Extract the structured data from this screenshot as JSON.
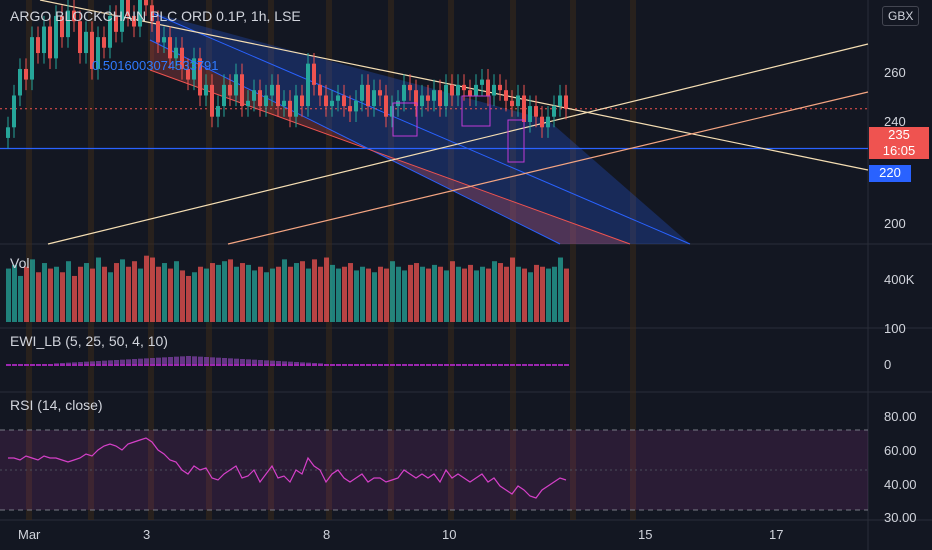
{
  "header": {
    "title": "ARGO BLOCKCHAIN PLC ORD 0.1P, 1h, LSE",
    "fib_label": "0.5016003074533791",
    "currency": "GBX"
  },
  "price_axis": {
    "ticks": [
      "260",
      "240",
      "200"
    ],
    "current_price": "235",
    "countdown": "16:05",
    "level_tag": "220"
  },
  "panes": {
    "volume": {
      "label": "Vol",
      "ticks": [
        "400K",
        "100"
      ]
    },
    "ewi": {
      "label": "EWI_LB (5, 25, 50, 4, 10)",
      "ticks": [
        "0"
      ]
    },
    "rsi": {
      "label": "RSI (14, close)",
      "ticks": [
        "80.00",
        "60.00",
        "40.00",
        "30.00"
      ]
    }
  },
  "time_axis": {
    "ticks": [
      "Mar",
      "3",
      "8",
      "10",
      "15",
      "17"
    ]
  },
  "colors": {
    "bg": "#131722",
    "up": "#26a69a",
    "down": "#ef5350",
    "blue": "#2962ff",
    "rsi": "#d540c8"
  },
  "chart_data": {
    "type": "candlestick",
    "title": "ARGO BLOCKCHAIN PLC ORD 0.1P, 1h, LSE",
    "ylim": [
      184,
      276
    ],
    "close": [
      228,
      240,
      250,
      246,
      262,
      256,
      266,
      254,
      270,
      262,
      272,
      268,
      256,
      264,
      250,
      262,
      258,
      270,
      264,
      278,
      270,
      266,
      280,
      274,
      268,
      260,
      262,
      254,
      258,
      250,
      246,
      254,
      240,
      244,
      232,
      236,
      244,
      240,
      248,
      236,
      238,
      242,
      236,
      240,
      244,
      236,
      238,
      232,
      240,
      236,
      252,
      244,
      240,
      236,
      238,
      240,
      236,
      234,
      238,
      244,
      236,
      242,
      240,
      232,
      236,
      238,
      244,
      242,
      236,
      240,
      238,
      242,
      236,
      244,
      240,
      244,
      242,
      240,
      244,
      246,
      240,
      244,
      242,
      238,
      236,
      240,
      230,
      236,
      232,
      228,
      232,
      236,
      240,
      235
    ],
    "volume": [
      290,
      310,
      250,
      300,
      340,
      270,
      320,
      290,
      300,
      270,
      330,
      250,
      300,
      320,
      290,
      350,
      300,
      270,
      320,
      340,
      300,
      330,
      290,
      360,
      350,
      300,
      320,
      290,
      330,
      280,
      250,
      270,
      300,
      290,
      320,
      310,
      330,
      340,
      300,
      320,
      310,
      280,
      300,
      270,
      290,
      300,
      340,
      300,
      320,
      330,
      290,
      340,
      300,
      350,
      310,
      290,
      300,
      320,
      280,
      300,
      290,
      270,
      300,
      290,
      330,
      300,
      280,
      310,
      320,
      300,
      290,
      310,
      300,
      280,
      330,
      300,
      290,
      310,
      280,
      300,
      290,
      330,
      320,
      300,
      350,
      300,
      290,
      270,
      310,
      300,
      290,
      300,
      350,
      290
    ],
    "rsi": [
      56,
      56,
      55,
      57,
      56,
      55,
      57,
      56,
      56,
      55,
      54,
      55,
      56,
      58,
      57,
      60,
      62,
      63,
      62,
      60,
      63,
      64,
      65,
      66,
      64,
      60,
      58,
      55,
      54,
      50,
      48,
      52,
      50,
      51,
      46,
      45,
      48,
      50,
      52,
      46,
      47,
      50,
      44,
      48,
      52,
      46,
      47,
      44,
      50,
      48,
      56,
      52,
      50,
      44,
      48,
      50,
      46,
      44,
      46,
      48,
      44,
      46,
      46,
      44,
      45,
      46,
      50,
      48,
      46,
      48,
      46,
      48,
      44,
      50,
      46,
      48,
      46,
      44,
      46,
      48,
      44,
      46,
      42,
      40,
      38,
      42,
      40,
      37,
      36,
      40,
      42,
      44,
      46,
      45
    ],
    "rsi_levels": [
      70,
      50,
      30
    ],
    "horizontal_level": 220
  }
}
